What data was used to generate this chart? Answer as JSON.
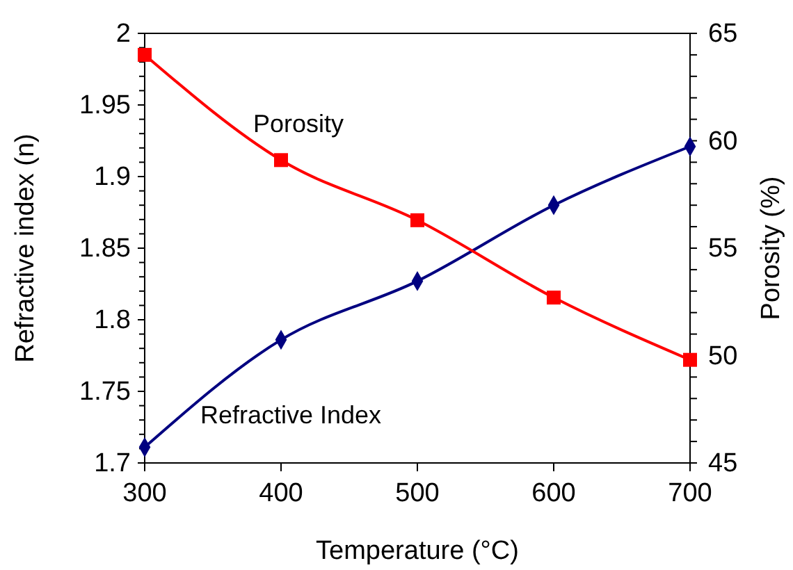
{
  "chart_data": {
    "type": "line",
    "xlabel": "Temperature (°C)",
    "ylabel": "Refractive index (n)",
    "y2label": "Porosity (%)",
    "x": [
      300,
      400,
      500,
      600,
      700
    ],
    "xlim": [
      300,
      700
    ],
    "xticks": [
      300,
      400,
      500,
      600,
      700
    ],
    "ylim": [
      1.7,
      2
    ],
    "yticks": [
      1.7,
      {
        "value": 1.71,
        "label": null
      },
      {
        "value": 1.72,
        "label": null
      },
      {
        "value": 1.73,
        "label": null
      },
      {
        "value": 1.74,
        "label": null
      },
      1.75,
      {
        "value": 1.76,
        "label": null
      },
      {
        "value": 1.77,
        "label": null
      },
      {
        "value": 1.78,
        "label": null
      },
      {
        "value": 1.79,
        "label": null
      },
      1.8,
      {
        "value": 1.81,
        "label": null
      },
      {
        "value": 1.82,
        "label": null
      },
      {
        "value": 1.83,
        "label": null
      },
      {
        "value": 1.84,
        "label": null
      },
      1.85,
      {
        "value": 1.86,
        "label": null
      },
      {
        "value": 1.87,
        "label": null
      },
      {
        "value": 1.88,
        "label": null
      },
      {
        "value": 1.89,
        "label": null
      },
      1.9,
      {
        "value": 1.91,
        "label": null
      },
      {
        "value": 1.92,
        "label": null
      },
      {
        "value": 1.93,
        "label": null
      },
      {
        "value": 1.94,
        "label": null
      },
      1.95,
      {
        "value": 1.96,
        "label": null
      },
      {
        "value": 1.97,
        "label": null
      },
      {
        "value": 1.98,
        "label": null
      },
      {
        "value": 1.99,
        "label": null
      },
      2
    ],
    "y2lim": [
      45,
      65
    ],
    "y2ticks": [
      45,
      {
        "value": 46,
        "label": null
      },
      {
        "value": 47,
        "label": null
      },
      {
        "value": 48,
        "label": null
      },
      {
        "value": 49,
        "label": null
      },
      50,
      {
        "value": 51,
        "label": null
      },
      {
        "value": 52,
        "label": null
      },
      {
        "value": 53,
        "label": null
      },
      {
        "value": 54,
        "label": null
      },
      55,
      {
        "value": 56,
        "label": null
      },
      {
        "value": 57,
        "label": null
      },
      {
        "value": 58,
        "label": null
      },
      {
        "value": 59,
        "label": null
      },
      60,
      {
        "value": 61,
        "label": null
      },
      {
        "value": 62,
        "label": null
      },
      {
        "value": 63,
        "label": null
      },
      {
        "value": 64,
        "label": null
      },
      65
    ],
    "grid": false,
    "line_style": "solid",
    "series": [
      {
        "name": "Refractive Index",
        "color": "#000080",
        "marker": "diamond",
        "values": [
          1.711,
          1.786,
          1.827,
          1.88,
          1.921
        ]
      },
      {
        "name": "Porosity",
        "color": "#ff0000",
        "marker": "square",
        "axis": "y2",
        "values": [
          64.0,
          59.1,
          56.3,
          52.7,
          49.8
        ]
      }
    ]
  }
}
